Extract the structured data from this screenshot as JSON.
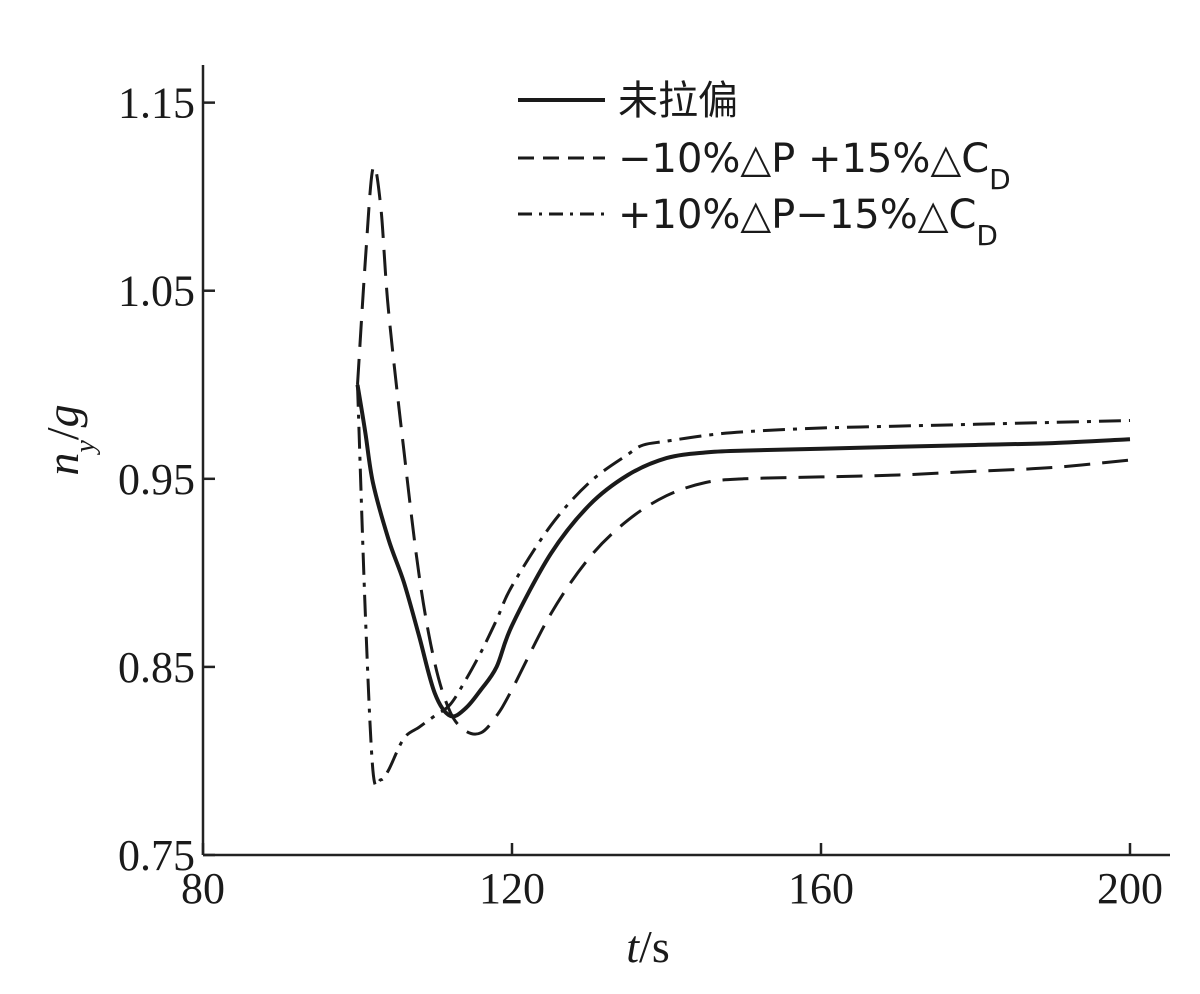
{
  "chart_data": {
    "type": "line",
    "xlabel": {
      "var": "t",
      "unit": "s"
    },
    "ylabel": {
      "var": "n",
      "sub": "y",
      "unit": "g"
    },
    "xlim": [
      80,
      200
    ],
    "ylim": [
      0.75,
      1.17
    ],
    "xticks": [
      80,
      120,
      160,
      200
    ],
    "yticks": [
      0.75,
      0.85,
      0.95,
      1.05,
      1.15
    ],
    "xtick_labels": [
      "80",
      "120",
      "160",
      "200"
    ],
    "ytick_labels": [
      "0.75",
      "0.85",
      "0.95",
      "1.05",
      "1.15"
    ],
    "grid": false,
    "legend_position": "top-right",
    "series": [
      {
        "name": "未拉偏",
        "style": "solid",
        "color": "#1a1a1a",
        "x": [
          100,
          101,
          102,
          104,
          106,
          108,
          110,
          112,
          114,
          116,
          118,
          120,
          125,
          130,
          135,
          140,
          145,
          150,
          160,
          170,
          180,
          190,
          200
        ],
        "y": [
          1.0,
          0.975,
          0.948,
          0.918,
          0.895,
          0.866,
          0.836,
          0.824,
          0.828,
          0.838,
          0.85,
          0.872,
          0.91,
          0.936,
          0.952,
          0.961,
          0.964,
          0.965,
          0.966,
          0.967,
          0.968,
          0.969,
          0.971
        ]
      },
      {
        "name": "−10%△P +15%△C_D",
        "style": "dashed",
        "color": "#1a1a1a",
        "x": [
          100,
          101,
          102,
          103,
          104,
          106,
          108,
          110,
          112,
          114,
          116,
          118,
          120,
          125,
          130,
          135,
          140,
          145,
          150,
          160,
          170,
          180,
          190,
          200
        ],
        "y": [
          1.0,
          1.065,
          1.115,
          1.095,
          1.04,
          0.965,
          0.898,
          0.852,
          0.826,
          0.816,
          0.815,
          0.824,
          0.838,
          0.878,
          0.908,
          0.928,
          0.941,
          0.948,
          0.95,
          0.951,
          0.952,
          0.954,
          0.956,
          0.96
        ]
      },
      {
        "name": "+10%△P−15%△C_D",
        "style": "dashdot",
        "color": "#1a1a1a",
        "x": [
          100,
          101,
          102,
          103,
          104,
          106,
          108,
          110,
          112,
          114,
          116,
          118,
          120,
          125,
          130,
          135,
          137,
          140,
          145,
          150,
          160,
          170,
          180,
          190,
          200
        ],
        "y": [
          1.0,
          0.88,
          0.795,
          0.79,
          0.795,
          0.812,
          0.818,
          0.824,
          0.83,
          0.843,
          0.858,
          0.875,
          0.893,
          0.925,
          0.948,
          0.963,
          0.968,
          0.97,
          0.973,
          0.975,
          0.977,
          0.978,
          0.979,
          0.98,
          0.981
        ]
      }
    ]
  }
}
